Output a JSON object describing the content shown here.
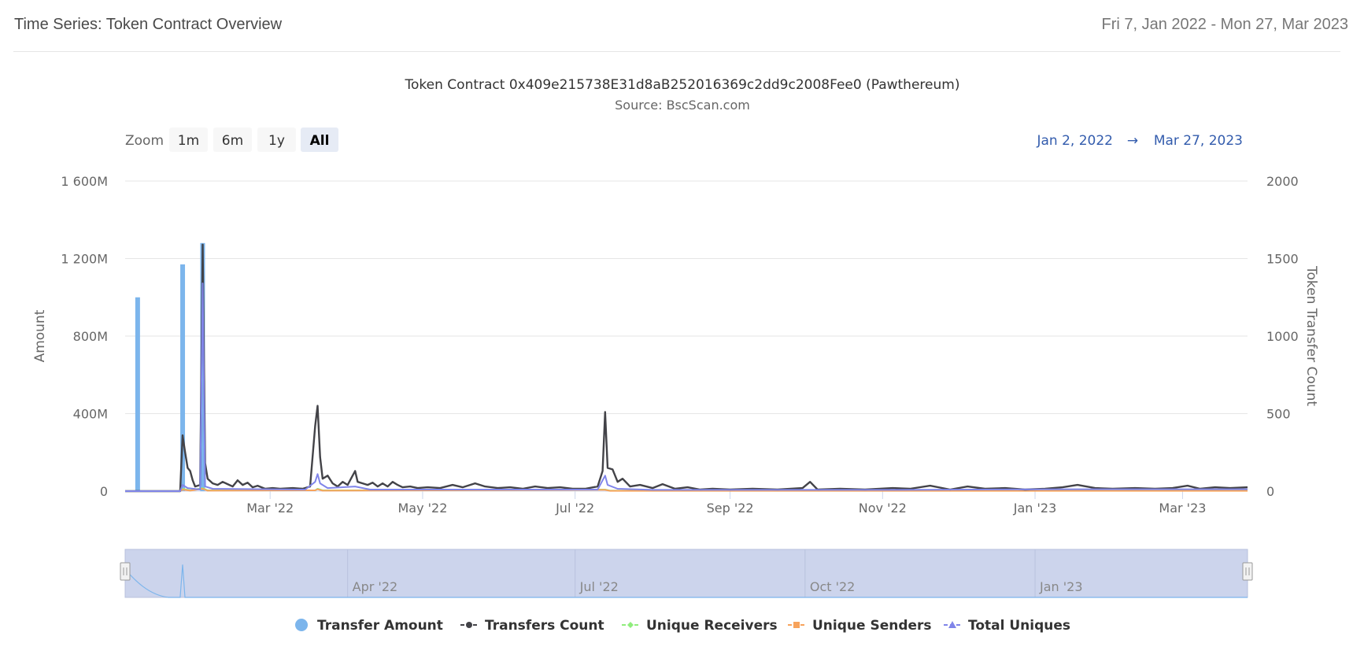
{
  "header": {
    "title": "Time Series: Token Contract Overview",
    "date_range": "Fri 7, Jan 2022 - Mon 27, Mar 2023"
  },
  "range_selector": {
    "zoom_label": "Zoom",
    "buttons": [
      "1m",
      "6m",
      "1y",
      "All"
    ],
    "selected": "All",
    "from": "Jan 2, 2022",
    "arrow": "→",
    "to": "Mar 27, 2023"
  },
  "navigator": {
    "labels": [
      "Apr '22",
      "Jul '22",
      "Oct '22",
      "Jan '23"
    ]
  },
  "colors": {
    "transfer_amount": "#7cb5ec",
    "transfers_count": "#434348",
    "unique_receivers": "#90ed7d",
    "unique_senders": "#f7a35c",
    "total_uniques": "#8085e9"
  },
  "chart_data": {
    "type": "line",
    "title": "Token Contract 0x409e215738E31d8aB252016369c2dd9c2008Fee0 (Pawthereum)",
    "subtitle": "Source: BscScan.com",
    "x_axis": {
      "type": "date",
      "range": [
        "2022-01-02",
        "2023-03-27"
      ],
      "tick_labels": [
        "Mar '22",
        "May '22",
        "Jul '22",
        "Sep '22",
        "Nov '22",
        "Jan '23",
        "Mar '23"
      ],
      "tick_dates": [
        "2022-03-01",
        "2022-05-01",
        "2022-07-01",
        "2022-09-01",
        "2022-11-01",
        "2023-01-01",
        "2023-03-01"
      ]
    },
    "y_axis_left": {
      "label": "Amount",
      "ylim": [
        0,
        1600000000
      ],
      "ticks": [
        0,
        400000000,
        800000000,
        1200000000,
        1600000000
      ],
      "tick_labels": [
        "0",
        "400M",
        "800M",
        "1 200M",
        "1 600M"
      ]
    },
    "y_axis_right": {
      "label": "Token Transfer Count",
      "ylim": [
        0,
        2000
      ],
      "ticks": [
        0,
        500,
        1000,
        1500,
        2000
      ],
      "tick_labels": [
        "0",
        "500",
        "1000",
        "1500",
        "2000"
      ]
    },
    "grid": true,
    "legend_position": "bottom",
    "series": [
      {
        "name": "Transfer Amount",
        "type": "column",
        "axis": "left",
        "points": [
          {
            "x": "2022-01-07",
            "y": 1000000000
          },
          {
            "x": "2022-01-25",
            "y": 1170000000
          },
          {
            "x": "2022-02-02",
            "y": 1280000000
          }
        ]
      },
      {
        "name": "Transfers Count",
        "type": "line",
        "axis": "right",
        "points": [
          {
            "x": "2022-01-02",
            "y": 0
          },
          {
            "x": "2022-01-24",
            "y": 0
          },
          {
            "x": "2022-01-25",
            "y": 360
          },
          {
            "x": "2022-01-26",
            "y": 250
          },
          {
            "x": "2022-01-27",
            "y": 150
          },
          {
            "x": "2022-01-28",
            "y": 130
          },
          {
            "x": "2022-01-29",
            "y": 70
          },
          {
            "x": "2022-01-30",
            "y": 30
          },
          {
            "x": "2022-02-01",
            "y": 40
          },
          {
            "x": "2022-02-02",
            "y": 1590
          },
          {
            "x": "2022-02-03",
            "y": 180
          },
          {
            "x": "2022-02-04",
            "y": 80
          },
          {
            "x": "2022-02-06",
            "y": 50
          },
          {
            "x": "2022-02-08",
            "y": 40
          },
          {
            "x": "2022-02-10",
            "y": 60
          },
          {
            "x": "2022-02-12",
            "y": 45
          },
          {
            "x": "2022-02-14",
            "y": 30
          },
          {
            "x": "2022-02-16",
            "y": 70
          },
          {
            "x": "2022-02-18",
            "y": 40
          },
          {
            "x": "2022-02-20",
            "y": 55
          },
          {
            "x": "2022-02-22",
            "y": 25
          },
          {
            "x": "2022-02-24",
            "y": 35
          },
          {
            "x": "2022-02-27",
            "y": 15
          },
          {
            "x": "2022-03-02",
            "y": 20
          },
          {
            "x": "2022-03-05",
            "y": 15
          },
          {
            "x": "2022-03-10",
            "y": 20
          },
          {
            "x": "2022-03-14",
            "y": 15
          },
          {
            "x": "2022-03-17",
            "y": 30
          },
          {
            "x": "2022-03-19",
            "y": 420
          },
          {
            "x": "2022-03-20",
            "y": 550
          },
          {
            "x": "2022-03-21",
            "y": 220
          },
          {
            "x": "2022-03-22",
            "y": 80
          },
          {
            "x": "2022-03-24",
            "y": 100
          },
          {
            "x": "2022-03-26",
            "y": 50
          },
          {
            "x": "2022-03-28",
            "y": 30
          },
          {
            "x": "2022-03-30",
            "y": 60
          },
          {
            "x": "2022-04-01",
            "y": 40
          },
          {
            "x": "2022-04-03",
            "y": 100
          },
          {
            "x": "2022-04-04",
            "y": 130
          },
          {
            "x": "2022-04-05",
            "y": 60
          },
          {
            "x": "2022-04-07",
            "y": 50
          },
          {
            "x": "2022-04-09",
            "y": 40
          },
          {
            "x": "2022-04-11",
            "y": 55
          },
          {
            "x": "2022-04-13",
            "y": 30
          },
          {
            "x": "2022-04-15",
            "y": 50
          },
          {
            "x": "2022-04-17",
            "y": 30
          },
          {
            "x": "2022-04-19",
            "y": 60
          },
          {
            "x": "2022-04-21",
            "y": 40
          },
          {
            "x": "2022-04-23",
            "y": 25
          },
          {
            "x": "2022-04-26",
            "y": 30
          },
          {
            "x": "2022-04-29",
            "y": 20
          },
          {
            "x": "2022-05-03",
            "y": 25
          },
          {
            "x": "2022-05-08",
            "y": 20
          },
          {
            "x": "2022-05-13",
            "y": 40
          },
          {
            "x": "2022-05-17",
            "y": 25
          },
          {
            "x": "2022-05-22",
            "y": 50
          },
          {
            "x": "2022-05-26",
            "y": 30
          },
          {
            "x": "2022-05-31",
            "y": 20
          },
          {
            "x": "2022-06-05",
            "y": 25
          },
          {
            "x": "2022-06-10",
            "y": 15
          },
          {
            "x": "2022-06-15",
            "y": 30
          },
          {
            "x": "2022-06-20",
            "y": 20
          },
          {
            "x": "2022-06-25",
            "y": 25
          },
          {
            "x": "2022-06-30",
            "y": 15
          },
          {
            "x": "2022-07-05",
            "y": 15
          },
          {
            "x": "2022-07-10",
            "y": 30
          },
          {
            "x": "2022-07-12",
            "y": 130
          },
          {
            "x": "2022-07-13",
            "y": 510
          },
          {
            "x": "2022-07-14",
            "y": 150
          },
          {
            "x": "2022-07-16",
            "y": 140
          },
          {
            "x": "2022-07-18",
            "y": 60
          },
          {
            "x": "2022-07-20",
            "y": 80
          },
          {
            "x": "2022-07-23",
            "y": 30
          },
          {
            "x": "2022-07-27",
            "y": 40
          },
          {
            "x": "2022-08-01",
            "y": 20
          },
          {
            "x": "2022-08-05",
            "y": 45
          },
          {
            "x": "2022-08-10",
            "y": 15
          },
          {
            "x": "2022-08-15",
            "y": 25
          },
          {
            "x": "2022-08-20",
            "y": 10
          },
          {
            "x": "2022-08-25",
            "y": 15
          },
          {
            "x": "2022-09-01",
            "y": 10
          },
          {
            "x": "2022-09-10",
            "y": 15
          },
          {
            "x": "2022-09-20",
            "y": 10
          },
          {
            "x": "2022-09-30",
            "y": 20
          },
          {
            "x": "2022-10-03",
            "y": 60
          },
          {
            "x": "2022-10-06",
            "y": 10
          },
          {
            "x": "2022-10-15",
            "y": 15
          },
          {
            "x": "2022-10-25",
            "y": 10
          },
          {
            "x": "2022-11-05",
            "y": 20
          },
          {
            "x": "2022-11-12",
            "y": 15
          },
          {
            "x": "2022-11-20",
            "y": 35
          },
          {
            "x": "2022-11-28",
            "y": 10
          },
          {
            "x": "2022-12-05",
            "y": 30
          },
          {
            "x": "2022-12-12",
            "y": 15
          },
          {
            "x": "2022-12-20",
            "y": 20
          },
          {
            "x": "2022-12-28",
            "y": 10
          },
          {
            "x": "2023-01-05",
            "y": 15
          },
          {
            "x": "2023-01-12",
            "y": 25
          },
          {
            "x": "2023-01-18",
            "y": 40
          },
          {
            "x": "2023-01-25",
            "y": 20
          },
          {
            "x": "2023-02-01",
            "y": 15
          },
          {
            "x": "2023-02-10",
            "y": 20
          },
          {
            "x": "2023-02-18",
            "y": 15
          },
          {
            "x": "2023-02-25",
            "y": 20
          },
          {
            "x": "2023-03-03",
            "y": 35
          },
          {
            "x": "2023-03-08",
            "y": 15
          },
          {
            "x": "2023-03-14",
            "y": 25
          },
          {
            "x": "2023-03-20",
            "y": 20
          },
          {
            "x": "2023-03-27",
            "y": 25
          }
        ]
      },
      {
        "name": "Unique Receivers",
        "type": "line",
        "axis": "right",
        "points": [
          {
            "x": "2022-01-02",
            "y": 0
          },
          {
            "x": "2022-01-24",
            "y": 0
          },
          {
            "x": "2022-01-25",
            "y": 15
          },
          {
            "x": "2022-01-28",
            "y": 5
          },
          {
            "x": "2022-02-02",
            "y": 20
          },
          {
            "x": "2022-02-04",
            "y": 5
          },
          {
            "x": "2022-03-19",
            "y": 5
          },
          {
            "x": "2022-03-20",
            "y": 15
          },
          {
            "x": "2022-03-22",
            "y": 5
          },
          {
            "x": "2022-04-05",
            "y": 5
          },
          {
            "x": "2022-07-13",
            "y": 10
          },
          {
            "x": "2022-07-15",
            "y": 3
          },
          {
            "x": "2023-03-27",
            "y": 3
          }
        ]
      },
      {
        "name": "Unique Senders",
        "type": "line",
        "axis": "right",
        "points": [
          {
            "x": "2022-01-02",
            "y": 0
          },
          {
            "x": "2022-01-24",
            "y": 0
          },
          {
            "x": "2022-01-25",
            "y": 10
          },
          {
            "x": "2022-01-28",
            "y": 3
          },
          {
            "x": "2022-02-02",
            "y": 15
          },
          {
            "x": "2022-02-04",
            "y": 3
          },
          {
            "x": "2022-03-19",
            "y": 5
          },
          {
            "x": "2022-03-20",
            "y": 12
          },
          {
            "x": "2022-03-22",
            "y": 3
          },
          {
            "x": "2022-07-13",
            "y": 8
          },
          {
            "x": "2022-07-15",
            "y": 2
          },
          {
            "x": "2023-03-27",
            "y": 2
          }
        ]
      },
      {
        "name": "Total Uniques",
        "type": "line",
        "axis": "right",
        "points": [
          {
            "x": "2022-01-02",
            "y": 0
          },
          {
            "x": "2022-01-24",
            "y": 0
          },
          {
            "x": "2022-01-25",
            "y": 40
          },
          {
            "x": "2022-01-27",
            "y": 20
          },
          {
            "x": "2022-02-01",
            "y": 10
          },
          {
            "x": "2022-02-02",
            "y": 1340
          },
          {
            "x": "2022-02-03",
            "y": 30
          },
          {
            "x": "2022-02-06",
            "y": 15
          },
          {
            "x": "2022-03-15",
            "y": 10
          },
          {
            "x": "2022-03-19",
            "y": 60
          },
          {
            "x": "2022-03-20",
            "y": 110
          },
          {
            "x": "2022-03-21",
            "y": 50
          },
          {
            "x": "2022-03-24",
            "y": 20
          },
          {
            "x": "2022-04-04",
            "y": 30
          },
          {
            "x": "2022-04-10",
            "y": 10
          },
          {
            "x": "2022-07-10",
            "y": 10
          },
          {
            "x": "2022-07-13",
            "y": 100
          },
          {
            "x": "2022-07-14",
            "y": 40
          },
          {
            "x": "2022-07-18",
            "y": 15
          },
          {
            "x": "2022-08-01",
            "y": 8
          },
          {
            "x": "2022-11-01",
            "y": 8
          },
          {
            "x": "2023-01-18",
            "y": 12
          },
          {
            "x": "2023-03-27",
            "y": 12
          }
        ]
      }
    ]
  }
}
